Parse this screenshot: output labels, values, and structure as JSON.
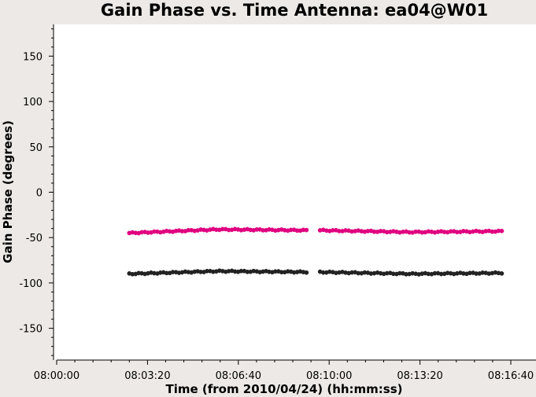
{
  "chart_data": {
    "type": "scatter",
    "title": "Gain Phase vs. Time Antenna: ea04@W01",
    "xlabel": "Time (from 2010/04/24) (hh:mm:ss)",
    "ylabel": "Gain Phase (degrees)",
    "ylim": [
      -185,
      185
    ],
    "xlim": [
      "08:00:00",
      "08:16:40"
    ],
    "yticks": [
      150,
      100,
      50,
      0,
      -50,
      -100,
      -150
    ],
    "xticks": [
      "08:00:00",
      "08:03:20",
      "08:06:40",
      "08:10:00",
      "08:13:20",
      "08:16:40"
    ],
    "grid": false,
    "series": [
      {
        "color": "#e0007f",
        "segments": [
          {
            "start": "08:02:40",
            "end": "08:09:10",
            "count": 58,
            "y_start": -45,
            "y_mid": -41,
            "y_end": -42
          },
          {
            "start": "08:09:40",
            "end": "08:16:20",
            "count": 58,
            "y_start": -42,
            "y_mid": -44,
            "y_end": -43
          }
        ]
      },
      {
        "color": "#222222",
        "segments": [
          {
            "start": "08:02:40",
            "end": "08:09:10",
            "count": 58,
            "y_start": -90,
            "y_mid": -87,
            "y_end": -88
          },
          {
            "start": "08:09:40",
            "end": "08:16:20",
            "count": 58,
            "y_start": -88,
            "y_mid": -90,
            "y_end": -89
          }
        ]
      }
    ]
  }
}
